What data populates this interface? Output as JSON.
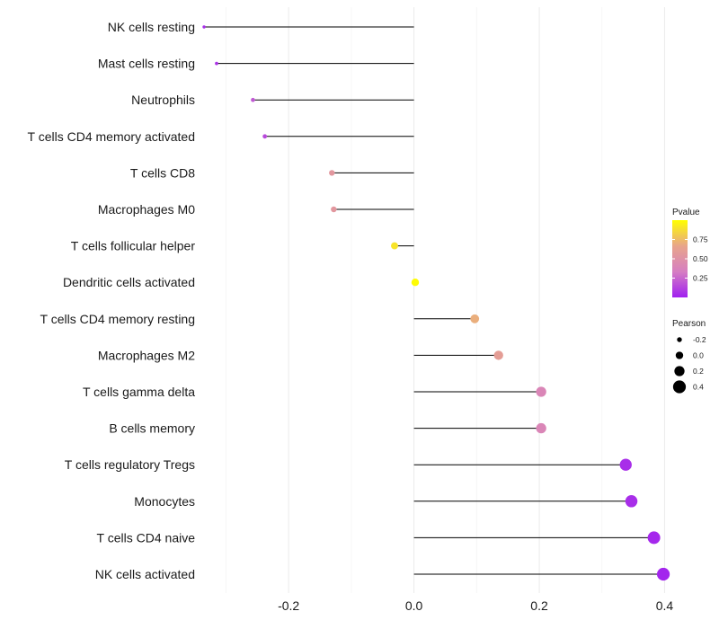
{
  "chart_data": {
    "type": "lollipop",
    "title": "",
    "xlabel": "",
    "ylabel": "",
    "xlim": [
      -0.3365,
      0.4065
    ],
    "xticks": [
      -0.2,
      0.0,
      0.2,
      0.4
    ],
    "xtick_labels": [
      "-0.2",
      "0.0",
      "0.2",
      "0.4"
    ],
    "grid": true,
    "points": [
      {
        "label": "NK cells resting",
        "value": -0.335,
        "pvalue": 0.05
      },
      {
        "label": "Mast cells resting",
        "value": -0.315,
        "pvalue": 0.07
      },
      {
        "label": "Neutrophils",
        "value": -0.257,
        "pvalue": 0.2
      },
      {
        "label": "T cells CD4 memory activated",
        "value": -0.238,
        "pvalue": 0.15
      },
      {
        "label": "T cells CD8",
        "value": -0.131,
        "pvalue": 0.55
      },
      {
        "label": "Macrophages M0",
        "value": -0.128,
        "pvalue": 0.55
      },
      {
        "label": "T cells follicular helper",
        "value": -0.031,
        "pvalue": 0.9
      },
      {
        "label": "Dendritic cells activated",
        "value": 0.002,
        "pvalue": 0.99
      },
      {
        "label": "T cells CD4 memory resting",
        "value": 0.097,
        "pvalue": 0.7
      },
      {
        "label": "Macrophages M2",
        "value": 0.135,
        "pvalue": 0.6
      },
      {
        "label": "T cells gamma delta",
        "value": 0.203,
        "pvalue": 0.4
      },
      {
        "label": "B cells memory",
        "value": 0.203,
        "pvalue": 0.4
      },
      {
        "label": "T cells regulatory  Tregs ",
        "value": 0.338,
        "pvalue": 0.05
      },
      {
        "label": "Monocytes",
        "value": 0.347,
        "pvalue": 0.05
      },
      {
        "label": "T cells CD4 naive",
        "value": 0.383,
        "pvalue": 0.03
      },
      {
        "label": "NK cells activated",
        "value": 0.398,
        "pvalue": 0.02
      }
    ],
    "legend_pvalue": {
      "title": "Pvalue",
      "range": [
        0.0,
        1.0
      ],
      "ticks": [
        0.75,
        0.5,
        0.25
      ],
      "tick_labels": [
        "0.75",
        "0.50",
        "0.25"
      ],
      "colors": [
        "#a020f0",
        "#d67ec2",
        "#e8a58a",
        "#ffff00"
      ]
    },
    "legend_pearson": {
      "title": "Pearson",
      "values": [
        -0.2,
        0.0,
        0.2,
        0.4
      ],
      "labels": [
        "-0.2",
        "0.0",
        "0.2",
        "0.4"
      ]
    },
    "colors": {
      "line": "#000000",
      "grid": "#ebebeb"
    }
  }
}
